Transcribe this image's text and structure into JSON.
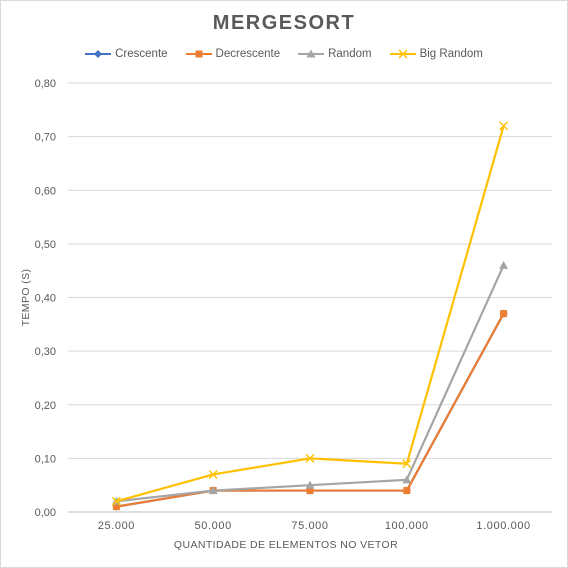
{
  "chart_data": {
    "type": "line",
    "title": "MERGESORT",
    "xlabel": "QUANTIDADE DE ELEMENTOS NO VETOR",
    "ylabel": "TEMPO (S)",
    "categories": [
      "25.000",
      "50.000",
      "75.000",
      "100.000",
      "1.000.000"
    ],
    "ylim": [
      0,
      0.8
    ],
    "yticks": [
      "0,00",
      "0,10",
      "0,20",
      "0,30",
      "0,40",
      "0,50",
      "0,60",
      "0,70",
      "0,80"
    ],
    "grid": true,
    "legend_position": "top",
    "series": [
      {
        "name": "Crescente",
        "color": "#4472c4",
        "marker": "diamond",
        "values": [
          0.01,
          0.04,
          0.04,
          0.04,
          0.37
        ]
      },
      {
        "name": "Decrescente",
        "color": "#ed7d31",
        "marker": "square",
        "values": [
          0.01,
          0.04,
          0.04,
          0.04,
          0.37
        ]
      },
      {
        "name": "Random",
        "color": "#a5a5a5",
        "marker": "triangle",
        "values": [
          0.02,
          0.04,
          0.05,
          0.06,
          0.46
        ]
      },
      {
        "name": "Big Random",
        "color": "#ffc000",
        "marker": "x",
        "values": [
          0.02,
          0.07,
          0.1,
          0.09,
          0.72
        ]
      }
    ]
  }
}
